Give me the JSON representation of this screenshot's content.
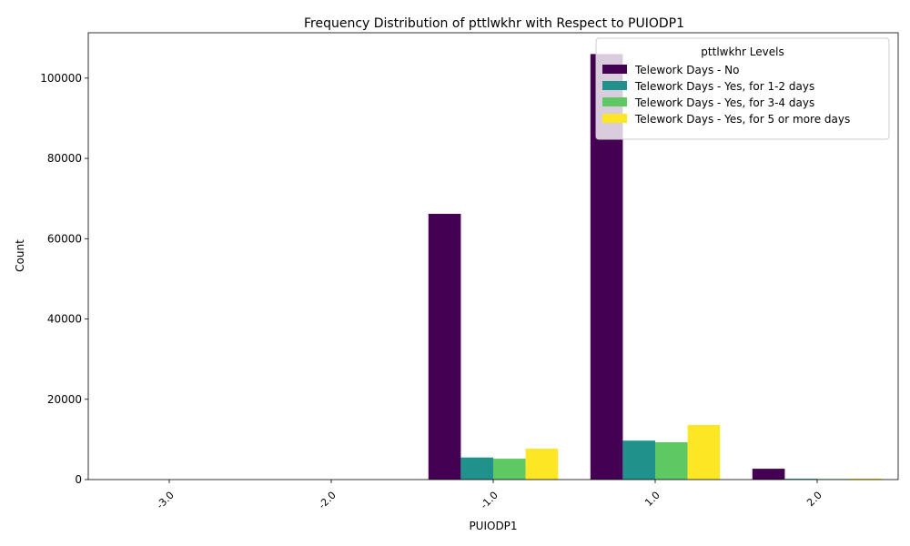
{
  "chart_data": {
    "type": "bar",
    "title": "Frequency Distribution of pttlwkhr with Respect to PUIODP1",
    "xlabel": "PUIODP1",
    "ylabel": "Count",
    "categories": [
      "-3.0",
      "-2.0",
      "-1.0",
      "1.0",
      "2.0"
    ],
    "ylim": [
      0,
      111300
    ],
    "yticks": [
      0,
      20000,
      40000,
      60000,
      80000,
      100000
    ],
    "grid": false,
    "legend": {
      "title": "pttlwkhr Levels",
      "placement": "top-right"
    },
    "series": [
      {
        "name": "Telework Days - No",
        "color": "#440154",
        "values": [
          0,
          0,
          66200,
          106000,
          2700
        ]
      },
      {
        "name": "Telework Days - Yes, for 1-2 days",
        "color": "#21918c",
        "values": [
          0,
          0,
          5500,
          9700,
          200
        ]
      },
      {
        "name": "Telework Days - Yes, for 3-4 days",
        "color": "#5ec962",
        "values": [
          0,
          0,
          5200,
          9300,
          150
        ]
      },
      {
        "name": "Telework Days - Yes, for 5 or more days",
        "color": "#fde725",
        "values": [
          0,
          0,
          7700,
          13600,
          250
        ]
      }
    ]
  }
}
